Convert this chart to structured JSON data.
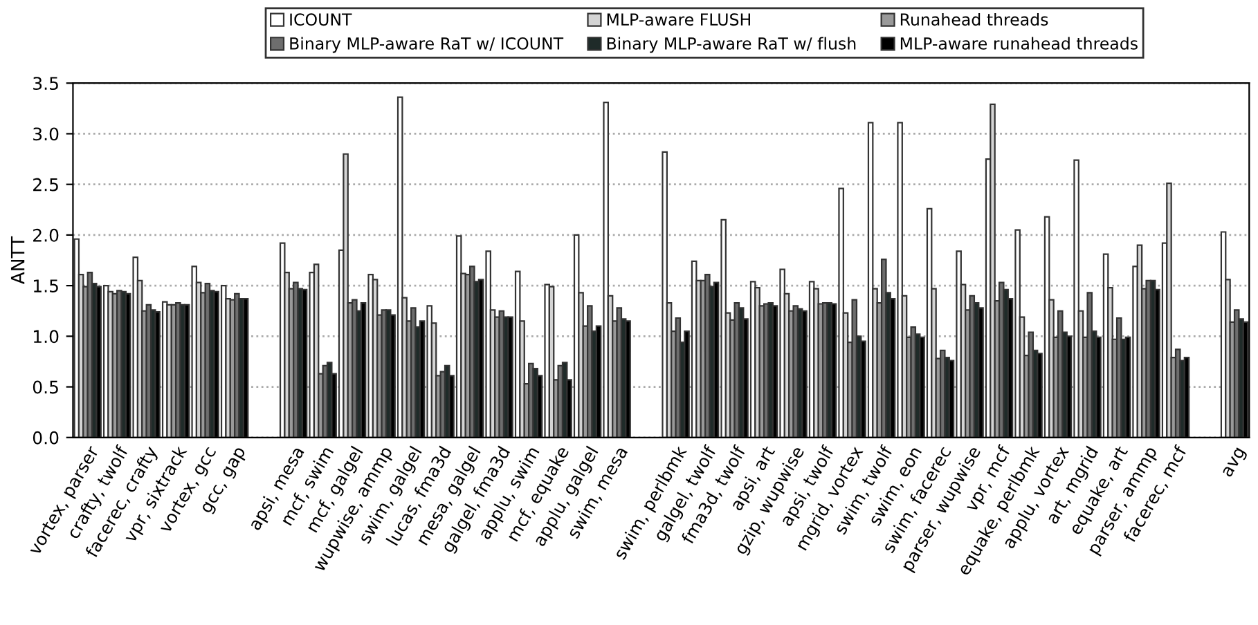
{
  "chart_data": {
    "type": "bar",
    "ylabel": "ANTT",
    "categories": [
      "vortex, parser",
      "crafty, twolf",
      "facerec, crafty",
      "vpr, sixtrack",
      "vortex, gcc",
      "gcc, gap",
      null,
      "apsi, mesa",
      "mcf, swim",
      "mcf, galgel",
      "wupwise, ammp",
      "swim, galgel",
      "lucas, fma3d",
      "mesa, galgel",
      "galgel, fma3d",
      "applu, swim",
      "mcf, equake",
      "applu, galgel",
      "swim, mesa",
      null,
      "swim, perlbmk",
      "galgel, twolf",
      "fma3d, twolf",
      "apsi, art",
      "gzip, wupwise",
      "apsi, twolf",
      "mgrid, vortex",
      "swim, twolf",
      "swim, eon",
      "swim, facerec",
      "parser, wupwise",
      "vpr, mcf",
      "equake, perlbmk",
      "applu, vortex",
      "art, mgrid",
      "equake, art",
      "parser, ammp",
      "facerec, mcf",
      null,
      "avg"
    ],
    "series": [
      {
        "name": "ICOUNT",
        "color": "#ffffff",
        "values": [
          1.96,
          1.5,
          1.78,
          1.34,
          1.69,
          1.5,
          null,
          1.92,
          1.63,
          1.85,
          1.61,
          3.36,
          1.3,
          1.99,
          1.84,
          1.64,
          1.51,
          2.0,
          3.31,
          null,
          2.82,
          1.74,
          2.15,
          1.54,
          1.66,
          1.54,
          2.46,
          3.11,
          3.11,
          2.26,
          1.84,
          2.75,
          2.05,
          2.18,
          2.74,
          1.81,
          1.69,
          1.92,
          null,
          2.03
        ]
      },
      {
        "name": "MLP-aware FLUSH",
        "color": "#d4d4d4",
        "values": [
          1.61,
          1.44,
          1.55,
          1.31,
          1.53,
          1.37,
          null,
          1.63,
          1.71,
          2.8,
          1.56,
          1.38,
          1.13,
          1.62,
          1.26,
          1.15,
          1.49,
          1.43,
          1.4,
          null,
          1.33,
          1.55,
          1.23,
          1.48,
          1.42,
          1.47,
          1.23,
          1.47,
          1.4,
          1.47,
          1.51,
          3.29,
          1.19,
          1.36,
          1.25,
          1.48,
          1.9,
          2.51,
          null,
          1.56
        ]
      },
      {
        "name": "Runahead threads",
        "color": "#999999",
        "values": [
          1.49,
          1.42,
          1.25,
          1.31,
          1.43,
          1.36,
          null,
          1.47,
          0.63,
          1.33,
          1.21,
          1.15,
          0.61,
          1.61,
          1.19,
          0.53,
          0.57,
          1.1,
          1.15,
          null,
          1.05,
          1.55,
          1.16,
          1.3,
          1.25,
          1.32,
          0.94,
          1.33,
          0.99,
          0.78,
          1.26,
          1.35,
          0.81,
          0.99,
          0.99,
          0.97,
          1.47,
          0.79,
          null,
          1.14
        ]
      },
      {
        "name": "Binary MLP-aware RaT w/ ICOUNT",
        "color": "#6e6e6e",
        "values": [
          1.63,
          1.45,
          1.31,
          1.33,
          1.52,
          1.42,
          null,
          1.53,
          0.71,
          1.36,
          1.26,
          1.28,
          0.65,
          1.69,
          1.25,
          0.73,
          0.71,
          1.3,
          1.28,
          null,
          1.18,
          1.61,
          1.33,
          1.32,
          1.3,
          1.33,
          1.36,
          1.76,
          1.09,
          0.86,
          1.4,
          1.53,
          1.04,
          1.25,
          1.43,
          1.18,
          1.55,
          0.87,
          null,
          1.26
        ]
      },
      {
        "name": "Binary MLP-aware RaT w/ flush",
        "color": "#1f2b29",
        "values": [
          1.52,
          1.44,
          1.26,
          1.31,
          1.45,
          1.37,
          null,
          1.47,
          0.74,
          1.25,
          1.26,
          1.09,
          0.71,
          1.54,
          1.19,
          0.68,
          0.74,
          1.05,
          1.17,
          null,
          0.94,
          1.49,
          1.28,
          1.33,
          1.27,
          1.33,
          1.0,
          1.43,
          1.02,
          0.79,
          1.33,
          1.46,
          0.86,
          1.04,
          1.05,
          0.97,
          1.55,
          0.76,
          null,
          1.17
        ]
      },
      {
        "name": "MLP-aware runahead threads",
        "color": "#000000",
        "values": [
          1.49,
          1.42,
          1.24,
          1.31,
          1.44,
          1.37,
          null,
          1.46,
          0.63,
          1.33,
          1.21,
          1.15,
          0.61,
          1.56,
          1.19,
          0.61,
          0.57,
          1.1,
          1.15,
          null,
          1.05,
          1.53,
          1.17,
          1.3,
          1.25,
          1.32,
          0.95,
          1.37,
          0.99,
          0.76,
          1.28,
          1.37,
          0.83,
          1.0,
          0.99,
          0.99,
          1.46,
          0.79,
          null,
          1.14
        ]
      }
    ],
    "ylim": [
      0,
      3.5
    ],
    "yticks": [
      {
        "value": 0,
        "label": "0.0"
      },
      {
        "value": 0.5,
        "label": "0.5"
      },
      {
        "value": 1,
        "label": "1.0"
      },
      {
        "value": 1.5,
        "label": "1.5"
      },
      {
        "value": 2,
        "label": "2.0"
      },
      {
        "value": 2.5,
        "label": "2.5"
      },
      {
        "value": 3,
        "label": "3.0"
      },
      {
        "value": 3.5,
        "label": "3.5"
      }
    ],
    "grid": "y",
    "legend": "top"
  }
}
